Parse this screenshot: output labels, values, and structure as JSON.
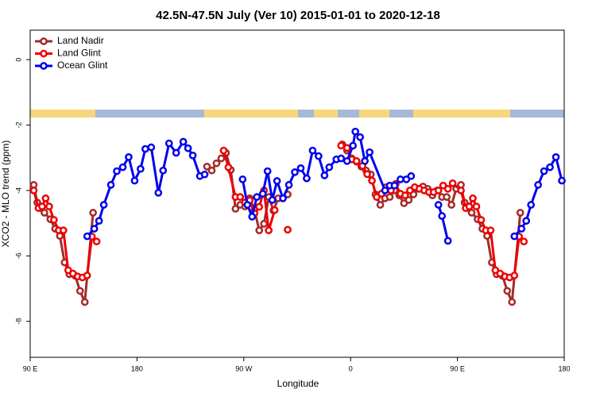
{
  "chart_data": {
    "type": "line",
    "title": "42.5N-47.5N July (Ver 10)   2015-01-01 to 2020-12-18",
    "xlabel": "Longitude",
    "ylabel": "XCO2 - MLO trend (ppm)",
    "xlim": [
      90,
      540
    ],
    "ylim": [
      -9.1,
      0.9
    ],
    "xticks": [
      {
        "value": 90,
        "label": "90 E"
      },
      180,
      {
        "value": 270,
        "label": "90 W"
      },
      {
        "value": 360,
        "label": "0"
      },
      {
        "value": 450,
        "label": "90 E"
      },
      {
        "value": 540,
        "label": "180"
      }
    ],
    "yticks": [
      0,
      -2,
      -4,
      -6,
      -8
    ],
    "legend": "upper left",
    "series": [
      {
        "name": "Land Nadir",
        "color": "#a52a2a",
        "x": [
          93,
          96,
          99,
          102,
          107,
          111,
          115,
          119,
          123,
          128,
          132,
          136,
          143,
          null,
          239,
          243,
          247,
          251,
          255,
          259,
          263,
          267,
          271,
          275,
          279,
          283,
          287,
          291,
          295,
          299,
          307,
          null,
          353,
          357,
          361,
          365,
          369,
          373,
          377,
          381,
          385,
          389,
          393,
          397,
          401,
          405,
          409,
          413,
          417,
          421,
          425,
          429,
          433,
          437,
          441,
          445,
          449,
          453,
          456,
          459,
          462,
          467,
          471,
          475,
          479,
          483,
          488,
          492,
          496,
          503
        ],
        "values": [
          -3.83,
          -4.37,
          -4.54,
          -4.68,
          -4.88,
          -5.17,
          -5.39,
          -6.2,
          -6.56,
          -6.61,
          -7.07,
          -7.41,
          -4.68,
          null,
          -3.27,
          -3.39,
          -3.17,
          -3.02,
          -2.85,
          -3.37,
          -4.56,
          -4.44,
          -4.49,
          -4.24,
          -4.59,
          -5.22,
          -5.02,
          -4.2,
          -4.61,
          -4.24,
          -4.12,
          null,
          -2.59,
          -2.78,
          -3.02,
          -3.12,
          -3.27,
          -3.39,
          -3.51,
          -4.12,
          -4.44,
          -4.24,
          -4.2,
          -4.0,
          -4.15,
          -4.39,
          -4.29,
          -4.12,
          -3.95,
          -3.88,
          -3.95,
          -4.15,
          -4.0,
          -4.2,
          -4.2,
          -4.44,
          -3.95,
          -3.83,
          -4.37,
          -4.54,
          -4.68,
          -4.88,
          -5.17,
          -5.39,
          -6.2,
          -6.56,
          -6.61,
          -7.07,
          -7.41,
          -4.68
        ]
      },
      {
        "name": "Land Glint",
        "color": "#ee0000",
        "x": [
          93,
          97,
          100,
          103,
          106,
          110,
          114,
          118,
          122,
          126,
          130,
          134,
          138,
          142,
          146,
          null,
          253,
          257,
          263,
          267,
          271,
          275,
          279,
          283,
          287,
          291,
          296,
          null,
          307,
          null,
          352,
          357,
          361,
          365,
          370,
          374,
          378,
          382,
          386,
          390,
          394,
          398,
          402,
          406,
          410,
          414,
          418,
          422,
          426,
          430,
          434,
          438,
          442,
          446,
          453,
          457,
          460,
          463,
          466,
          470,
          474,
          478,
          482,
          486,
          490,
          494,
          498,
          502,
          506
        ],
        "values": [
          -4.0,
          -4.54,
          -4.49,
          -4.24,
          -4.49,
          -4.9,
          -5.22,
          -5.22,
          -6.44,
          -6.54,
          -6.63,
          -6.66,
          -6.6,
          -5.41,
          -5.56,
          null,
          -2.78,
          -3.29,
          -4.2,
          -4.2,
          -4.37,
          -4.3,
          -4.7,
          -4.5,
          -4.0,
          -5.22,
          -4.6,
          null,
          -5.2,
          null,
          -2.63,
          -2.7,
          -3.05,
          -3.1,
          -3.25,
          -3.5,
          -3.7,
          -4.2,
          -4.1,
          -3.9,
          -4.0,
          -3.8,
          -4.1,
          -4.15,
          -4.0,
          -3.9,
          -3.95,
          -4.0,
          -4.05,
          -4.05,
          -4.0,
          -3.85,
          -3.95,
          -3.78,
          -4.0,
          -4.54,
          -4.49,
          -4.24,
          -4.49,
          -4.9,
          -5.22,
          -5.22,
          -6.44,
          -6.54,
          -6.63,
          -6.66,
          -6.6,
          -5.41,
          -5.56
        ]
      },
      {
        "name": "Ocean Glint",
        "color": "#0000ee",
        "x": [
          138,
          144,
          148,
          152,
          158,
          163,
          168,
          173,
          178,
          183,
          187,
          192,
          198,
          202,
          207,
          213,
          219,
          223,
          227,
          233,
          237,
          null,
          269,
          273,
          277,
          281,
          286,
          290,
          294,
          298,
          303,
          308,
          313,
          318,
          323,
          328,
          333,
          338,
          342,
          348,
          352,
          357,
          362,
          364,
          368,
          372,
          376,
          389,
          393,
          397,
          402,
          407,
          411,
          null,
          434,
          437,
          442,
          null,
          498,
          504,
          508,
          512,
          518,
          523,
          528,
          533,
          538
        ],
        "values": [
          -5.4,
          -5.17,
          -4.93,
          -4.44,
          -3.83,
          -3.41,
          -3.29,
          -2.98,
          -3.7,
          -3.34,
          -2.73,
          -2.68,
          -4.07,
          -3.39,
          -2.56,
          -2.85,
          -2.51,
          -2.71,
          -2.93,
          -3.56,
          -3.51,
          null,
          -3.66,
          -4.44,
          -4.8,
          -4.2,
          -4.1,
          -3.41,
          -4.29,
          -3.71,
          -4.24,
          -3.83,
          -3.44,
          -3.32,
          -3.63,
          -2.78,
          -2.95,
          -3.54,
          -3.29,
          -3.05,
          -3.02,
          -3.1,
          -2.63,
          -2.2,
          -2.37,
          -3.1,
          -2.83,
          -4.0,
          -3.85,
          -3.85,
          -3.66,
          -3.66,
          -3.56,
          null,
          -4.44,
          -4.78,
          -5.54,
          null,
          -5.4,
          -5.17,
          -4.93,
          -4.44,
          -3.83,
          -3.41,
          -3.29,
          -2.98,
          -3.7
        ]
      }
    ]
  }
}
